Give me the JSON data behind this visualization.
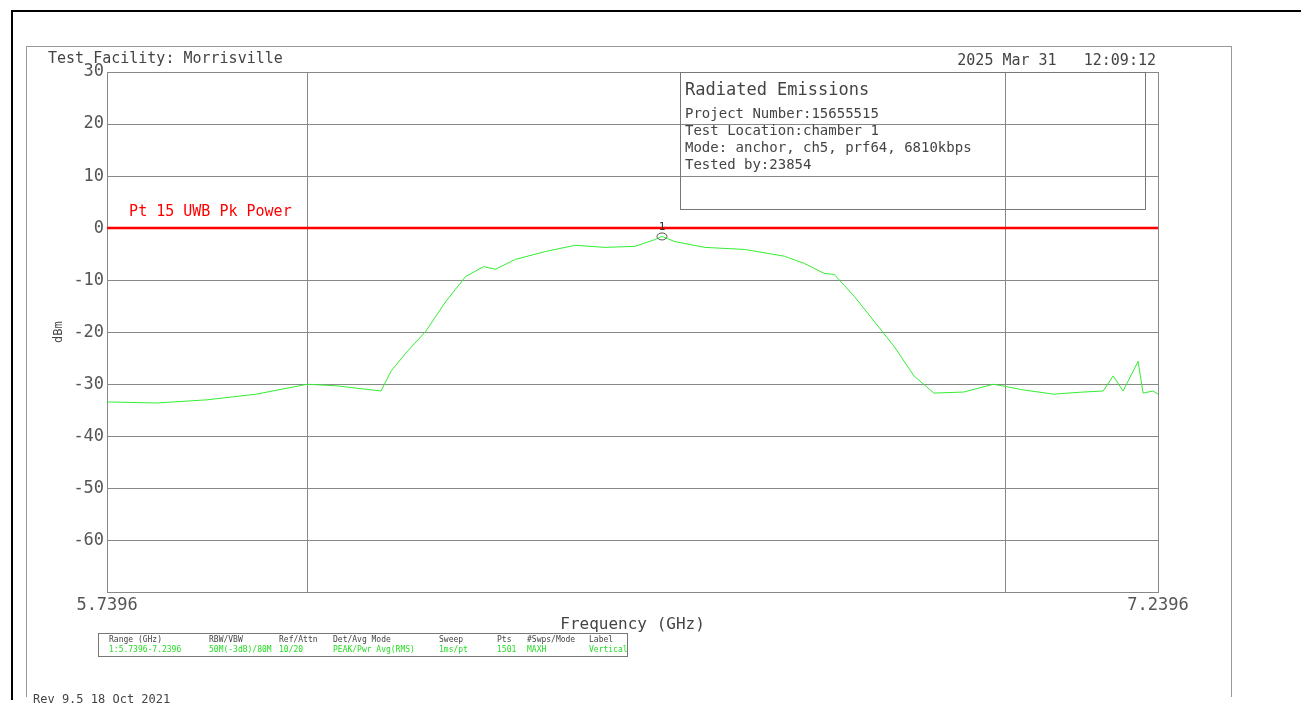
{
  "chart_data": {
    "type": "line",
    "title": "Test Facility: Morrisville",
    "xlabel": "Frequency (GHz)",
    "ylabel": "dBm",
    "xlim": [
      5.7396,
      7.2396
    ],
    "xticks": [
      5.7396,
      {
        "value": 6.0254,
        "label": null
      },
      {
        "value": 7.0221,
        "label": null
      },
      7.2396
    ],
    "ylim": [
      -70,
      30
    ],
    "yticks": [
      30,
      20,
      10,
      0,
      -10,
      -20,
      -30,
      -40,
      -50,
      -60,
      {
        "value": -70,
        "label": null
      }
    ],
    "grid": true,
    "legend": false,
    "series": [
      {
        "color": "#33ee33",
        "x": [
          5.7396,
          5.8107,
          5.8818,
          5.9529,
          6.0254,
          6.0666,
          6.1306,
          6.1448,
          6.1661,
          6.1946,
          6.223,
          6.2514,
          6.277,
          6.2941,
          6.3225,
          6.3652,
          6.4078,
          6.4505,
          6.4932,
          6.5216,
          6.5316,
          6.5501,
          6.5927,
          6.6496,
          6.7064,
          6.7349,
          6.7633,
          6.7775,
          6.806,
          6.8344,
          6.8628,
          6.8913,
          6.9197,
          6.9623,
          7.005,
          7.0477,
          7.0903,
          7.133,
          7.1614,
          7.1756,
          7.1898,
          7.2112,
          7.2183,
          7.2325,
          7.2396
        ],
        "values": [
          -33.4,
          -33.6,
          -33.0,
          -31.9,
          -30.0,
          -30.3,
          -31.3,
          -27.5,
          -24.0,
          -19.8,
          -14.1,
          -9.3,
          -7.4,
          -7.9,
          -6.0,
          -4.5,
          -3.3,
          -3.7,
          -3.5,
          -2.2,
          -1.6,
          -2.6,
          -3.7,
          -4.1,
          -5.4,
          -6.8,
          -8.7,
          -8.9,
          -13.1,
          -17.9,
          -22.7,
          -28.4,
          -31.7,
          -31.5,
          -30.0,
          -31.1,
          -31.9,
          -31.5,
          -31.3,
          -28.4,
          -31.3,
          -25.6,
          -31.7,
          -31.3,
          -31.9
        ]
      }
    ],
    "ref_lines": [
      {
        "axis": "y",
        "value": 0,
        "label": "Pt 15 UWB Pk Power",
        "color": "#ff0000"
      }
    ],
    "annotations": [
      {
        "text": "1",
        "x": 6.5316,
        "y": -1.6
      },
      "2025 Mar 31   12:09:12",
      "Radiated Emissions",
      "Project Number:15655515",
      "Test Location:chamber 1",
      "Mode: anchor, ch5, prf64, 6810kbps",
      "Tested by:23854",
      "Range (GHz)",
      "RBW/VBW",
      "Ref/Attn",
      "Det/Avg Mode",
      "Sweep",
      "Pts",
      "#Swps/Mode",
      "Label",
      "1:5.7396-7.2396",
      "50M(-3dB)/80M",
      "10/20",
      "PEAK/Pwr Avg(RMS)",
      "1ms/pt",
      "1501",
      "MAXH",
      "Vertical",
      "Rev 9.5 18 Oct 2021"
    ]
  }
}
